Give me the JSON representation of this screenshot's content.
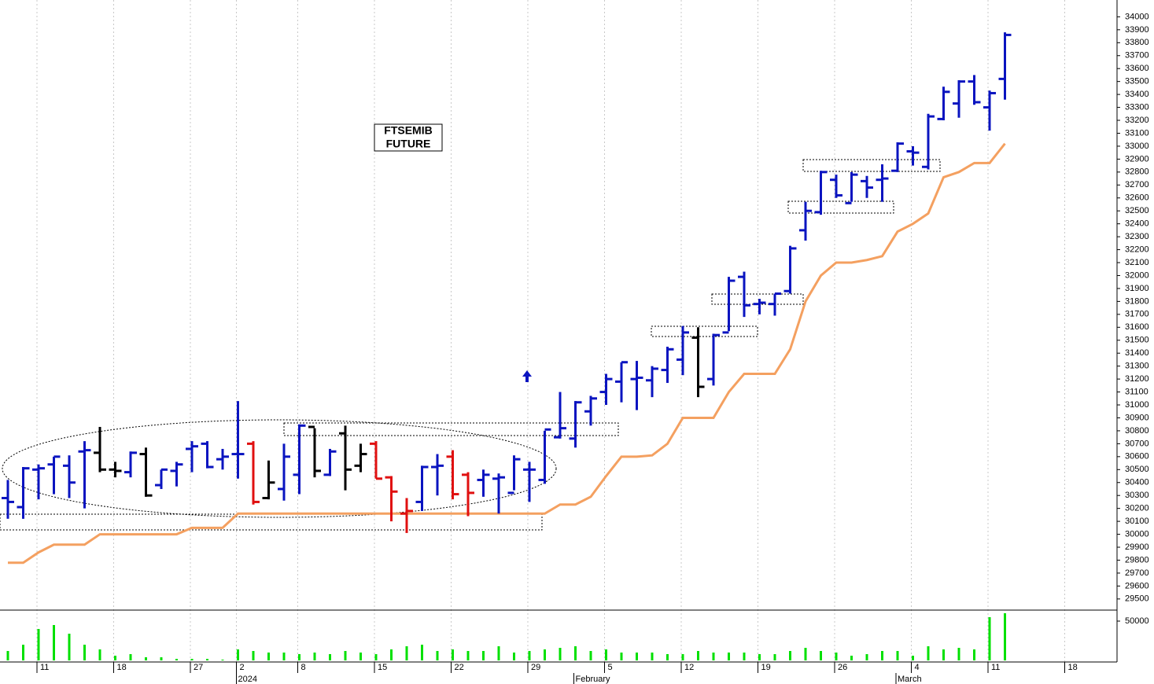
{
  "chart_data": [
    {
      "type": "ohlc",
      "title_lines": [
        "FTSEMIB",
        "FUTURE"
      ],
      "categories": [
        null,
        null,
        "11",
        null,
        null,
        null,
        null,
        "18",
        null,
        null,
        null,
        null,
        "27",
        null,
        null,
        "2",
        null,
        null,
        null,
        "8",
        null,
        null,
        null,
        null,
        "15",
        null,
        null,
        null,
        null,
        "22",
        null,
        null,
        null,
        null,
        "29",
        null,
        null,
        null,
        null,
        "5",
        null,
        null,
        null,
        null,
        "12",
        null,
        null,
        null,
        null,
        "19",
        null,
        null,
        null,
        null,
        "26",
        null,
        null,
        null,
        null,
        "4",
        null,
        null,
        null,
        null,
        "11",
        null,
        null,
        null,
        null,
        "18",
        null,
        null,
        null
      ],
      "category_groups": [
        null,
        null,
        null,
        null,
        null,
        null,
        null,
        null,
        null,
        null,
        null,
        null,
        null,
        null,
        null,
        "2024",
        null,
        null,
        null,
        null,
        null,
        null,
        null,
        null,
        null,
        null,
        null,
        null,
        null,
        null,
        null,
        null,
        null,
        null,
        null,
        null,
        null,
        "February",
        null,
        null,
        null,
        null,
        null,
        null,
        null,
        null,
        null,
        null,
        null,
        null,
        null,
        null,
        null,
        null,
        null,
        null,
        null,
        null,
        "March",
        null,
        null,
        null,
        null,
        null,
        null,
        null,
        null,
        null,
        null,
        null,
        null,
        null,
        null,
        null
      ],
      "open": [
        30280,
        30210,
        30500,
        30540,
        30530,
        30640,
        30630,
        30500,
        30480,
        30620,
        30380,
        30490,
        30660,
        30700,
        30580,
        30620,
        30700,
        30280,
        30350,
        30460,
        30830,
        30460,
        30780,
        30530,
        30700,
        30440,
        30160,
        30250,
        30520,
        30600,
        30460,
        30420,
        30430,
        30320,
        30500,
        30420,
        30750,
        30740,
        30950,
        31100,
        31180,
        31200,
        31190,
        31270,
        31350,
        31520,
        31200,
        31560,
        31990,
        31780,
        31780,
        31880,
        32350,
        32490,
        32740,
        32560,
        32730,
        32740,
        32810,
        32960,
        32840,
        33210,
        33330,
        33500,
        33300,
        33520,
        null,
        null,
        null,
        null,
        null,
        null,
        null
      ],
      "high": [
        30420,
        30520,
        30540,
        30600,
        30610,
        30720,
        30830,
        30560,
        30640,
        30670,
        30500,
        30560,
        30720,
        30720,
        30660,
        31030,
        30720,
        30570,
        30700,
        30850,
        30820,
        30660,
        30840,
        30700,
        30720,
        30450,
        30280,
        30530,
        30620,
        30650,
        30480,
        30500,
        30470,
        30610,
        30560,
        30800,
        31100,
        31030,
        31070,
        31240,
        31330,
        31340,
        31300,
        31450,
        31610,
        31600,
        31550,
        31990,
        32030,
        31820,
        31860,
        32230,
        32570,
        32810,
        32780,
        32800,
        32770,
        32860,
        33030,
        33000,
        33250,
        33460,
        33510,
        33550,
        33430,
        33880,
        null,
        null,
        null,
        null,
        null,
        null,
        null
      ],
      "low": [
        30120,
        30120,
        30270,
        30310,
        30280,
        30200,
        30480,
        30440,
        30440,
        30290,
        30350,
        30370,
        30480,
        30510,
        30500,
        30430,
        30230,
        30270,
        30260,
        30310,
        30440,
        30450,
        30340,
        30480,
        30430,
        30100,
        30010,
        30180,
        30300,
        30270,
        30140,
        30290,
        30160,
        30340,
        30250,
        30390,
        30740,
        30670,
        30840,
        31000,
        31020,
        30960,
        31060,
        31170,
        31230,
        31060,
        31150,
        31570,
        31680,
        31700,
        31690,
        31860,
        32270,
        32470,
        32600,
        32570,
        32600,
        32570,
        32800,
        32850,
        32820,
        33200,
        33220,
        33320,
        33120,
        33360,
        null,
        null,
        null,
        null,
        null,
        null,
        null
      ],
      "close": [
        30250,
        30510,
        30510,
        30600,
        30400,
        30650,
        30500,
        30490,
        30630,
        30300,
        30500,
        30540,
        30680,
        30520,
        30600,
        30620,
        30250,
        30400,
        30600,
        30840,
        30490,
        30640,
        30500,
        30620,
        30430,
        30330,
        30180,
        30520,
        30530,
        30310,
        30320,
        30460,
        30440,
        30580,
        30500,
        30810,
        30820,
        31020,
        31050,
        31200,
        31330,
        31210,
        31280,
        31430,
        31560,
        31140,
        31540,
        31960,
        31770,
        31790,
        31860,
        32210,
        32500,
        32800,
        32620,
        32780,
        32680,
        32750,
        33020,
        32950,
        33230,
        33420,
        33500,
        33340,
        33410,
        33860,
        null,
        null,
        null,
        null,
        null,
        null,
        null
      ],
      "bar_colors": [
        "#0a14c0",
        "#0a14c0",
        "#0a14c0",
        "#0a14c0",
        "#0a14c0",
        "#0a14c0",
        "#000000",
        "#000000",
        "#0a14c0",
        "#000000",
        "#0a14c0",
        "#0a14c0",
        "#0a14c0",
        "#0a14c0",
        "#0a14c0",
        "#0a14c0",
        "#e01010",
        "#000000",
        "#0a14c0",
        "#0a14c0",
        "#000000",
        "#0a14c0",
        "#000000",
        "#000000",
        "#e01010",
        "#e01010",
        "#e01010",
        "#0a14c0",
        "#0a14c0",
        "#e01010",
        "#e01010",
        "#0a14c0",
        "#0a14c0",
        "#0a14c0",
        "#0a14c0",
        "#0a14c0",
        "#0a14c0",
        "#0a14c0",
        "#0a14c0",
        "#0a14c0",
        "#0a14c0",
        "#0a14c0",
        "#0a14c0",
        "#0a14c0",
        "#0a14c0",
        "#000000",
        "#0a14c0",
        "#0a14c0",
        "#0a14c0",
        "#0a14c0",
        "#0a14c0",
        "#0a14c0",
        "#0a14c0",
        "#0a14c0",
        "#0a14c0",
        "#0a14c0",
        "#0a14c0",
        "#0a14c0",
        "#0a14c0",
        "#0a14c0",
        "#0a14c0",
        "#0a14c0",
        "#0a14c0",
        "#0a14c0",
        "#0a14c0",
        "#0a14c0",
        null,
        null,
        null,
        null,
        null,
        null,
        null
      ],
      "line": {
        "color": "#f4a060",
        "values": [
          29780,
          29780,
          29860,
          29920,
          29920,
          29920,
          30000,
          30000,
          30000,
          30000,
          30000,
          30000,
          30050,
          30050,
          30050,
          30160,
          30160,
          30160,
          30160,
          30160,
          30160,
          30160,
          30160,
          30160,
          30160,
          30160,
          30160,
          30160,
          30160,
          30160,
          30160,
          30160,
          30160,
          30160,
          30160,
          30160,
          30230,
          30230,
          30290,
          30450,
          30600,
          30600,
          30610,
          30700,
          30900,
          30900,
          30900,
          31100,
          31240,
          31240,
          31240,
          31430,
          31800,
          32000,
          32100,
          32100,
          32120,
          32150,
          32340,
          32400,
          32480,
          32760,
          32800,
          32870,
          32870,
          33020,
          null,
          null,
          null,
          null,
          null,
          null,
          null
        ]
      },
      "ylim": [
        29420,
        34130
      ],
      "yticks": [
        29500,
        29600,
        29700,
        29800,
        29900,
        30000,
        30100,
        30200,
        30300,
        30400,
        30500,
        30600,
        30700,
        30800,
        30900,
        31000,
        31100,
        31200,
        31300,
        31400,
        31500,
        31600,
        31700,
        31800,
        31900,
        32000,
        32100,
        32200,
        32300,
        32400,
        32500,
        32600,
        32700,
        32800,
        32900,
        33000,
        33100,
        33200,
        33300,
        33400,
        33500,
        33600,
        33700,
        33800,
        33900,
        34000
      ]
    },
    {
      "type": "bar",
      "color": "#00e000",
      "values": [
        12000,
        20000,
        40000,
        45000,
        34000,
        20000,
        14000,
        6000,
        8000,
        4000,
        4000,
        2000,
        2000,
        2000,
        1000,
        14000,
        12000,
        10000,
        10000,
        8000,
        10000,
        8000,
        12000,
        10000,
        8000,
        14000,
        18000,
        20000,
        12000,
        14000,
        12000,
        12000,
        18000,
        10000,
        12000,
        14000,
        16000,
        18000,
        12000,
        14000,
        10000,
        10000,
        10000,
        8000,
        8000,
        12000,
        10000,
        10000,
        10000,
        8000,
        8000,
        12000,
        16000,
        12000,
        10000,
        6000,
        8000,
        12000,
        12000,
        6000,
        18000,
        14000,
        16000,
        14000,
        55000,
        60000,
        null,
        null,
        null,
        null,
        null,
        null,
        null
      ],
      "ylim": [
        0,
        63000
      ],
      "yticks": [
        50000
      ]
    }
  ]
}
